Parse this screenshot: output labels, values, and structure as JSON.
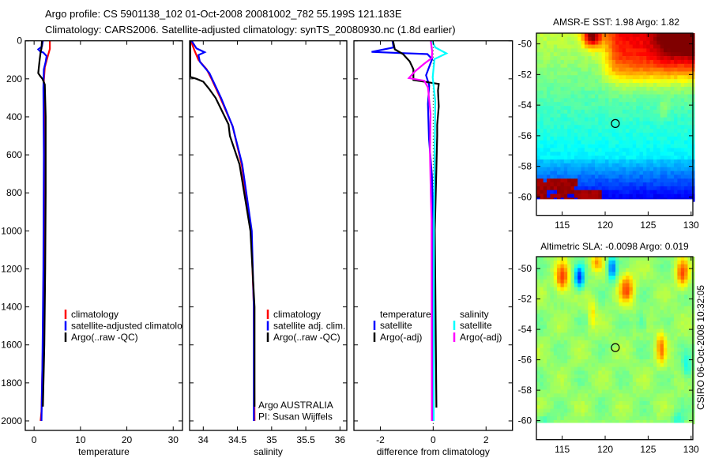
{
  "header": {
    "line1": "Argo profile: CS 5901138_102 01-Oct-2008 20081002_782 55.199S 121.183E",
    "line2": "Climatology: CARS2006. Satellite-adjusted climatology: synTS_20080930.nc (1.8d earlier)"
  },
  "footer_stamp": "CSIRO 06-Oct-2008 10:32:05",
  "chart_data": [
    {
      "type": "line",
      "xlabel": "temperature",
      "ylabel": "",
      "xlim": [
        -1.9,
        32.0
      ],
      "ylim": [
        0,
        2050
      ],
      "y_reversed": true,
      "xticks": [
        0,
        10,
        20,
        30
      ],
      "yticks": [
        0,
        200,
        400,
        600,
        800,
        1000,
        1200,
        1400,
        1600,
        1800,
        2000
      ],
      "legend": [
        "climatology",
        "satellite-adjusted climatology",
        "Argo(..raw -QC)"
      ],
      "series": [
        {
          "name": "climatology",
          "color": "#ff0000",
          "depth": [
            0,
            43,
            76,
            139,
            209,
            300,
            500,
            800,
            1200,
            1600,
            1950,
            2000
          ],
          "values": [
            3.4,
            3.4,
            3.0,
            2.3,
            2.1,
            2.2,
            2.3,
            2.25,
            2.1,
            1.9,
            1.6,
            1.4
          ]
        },
        {
          "name": "satellite-adjusted climatology",
          "color": "#0000ff",
          "depth": [
            0,
            30,
            45,
            55,
            62,
            80,
            110,
            150,
            250,
            600,
            1200,
            1700,
            2000
          ],
          "values": [
            1.9,
            1.7,
            0.9,
            1.3,
            2.0,
            2.7,
            2.5,
            2.1,
            2.0,
            2.1,
            2.0,
            1.8,
            1.6
          ]
        },
        {
          "name": "Argo(..raw -QC)",
          "color": "#000000",
          "depth": [
            0,
            40,
            60,
            100,
            170,
            185,
            200,
            230,
            400,
            800,
            1200,
            1600,
            1925
          ],
          "values": [
            1.7,
            1.6,
            1.4,
            1.2,
            0.9,
            1.3,
            1.8,
            2.3,
            2.5,
            2.5,
            2.4,
            2.2,
            1.9
          ]
        }
      ]
    },
    {
      "type": "line",
      "xlabel": "salinity",
      "xlim": [
        33.8,
        36.1
      ],
      "ylim": [
        0,
        2050
      ],
      "y_reversed": true,
      "xticks": [
        34,
        34.5,
        35,
        35.5,
        36
      ],
      "legend": [
        "climatology",
        "satellite adj. clim.",
        "Argo(..raw -QC)"
      ],
      "annotation": [
        "Argo AUSTRALIA",
        "PI: Susan Wijffels"
      ],
      "series": [
        {
          "name": "climatology",
          "color": "#ff0000",
          "depth": [
            0,
            50,
            100,
            150,
            200,
            300,
            450,
            650,
            1000,
            1400,
            2000
          ],
          "values": [
            33.82,
            33.87,
            33.93,
            34.05,
            34.12,
            34.25,
            34.43,
            34.56,
            34.7,
            34.74,
            34.75
          ]
        },
        {
          "name": "satellite adj. clim.",
          "color": "#0000ff",
          "depth": [
            0,
            40,
            60,
            75,
            110,
            170,
            300,
            450,
            650,
            1000,
            1400,
            2000
          ],
          "values": [
            33.83,
            33.9,
            34.02,
            33.93,
            33.95,
            34.09,
            34.26,
            34.43,
            34.57,
            34.71,
            34.74,
            34.74
          ]
        },
        {
          "name": "Argo(..raw -QC)",
          "color": "#000000",
          "depth": [
            0,
            190,
            200,
            215,
            250,
            300,
            440,
            500,
            650,
            1000,
            1400,
            1925
          ],
          "values": [
            33.81,
            33.81,
            33.9,
            34.0,
            34.08,
            34.18,
            34.37,
            34.39,
            34.53,
            34.69,
            34.75,
            34.75
          ]
        }
      ]
    },
    {
      "type": "line",
      "xlabel": "difference from climatology",
      "xlim": [
        -3,
        3
      ],
      "ylim": [
        0,
        2050
      ],
      "y_reversed": true,
      "xticks": [
        -2,
        0,
        2
      ],
      "legend_groups": [
        {
          "title": "temperature",
          "items": [
            "satellite",
            "Argo(-adj)"
          ]
        },
        {
          "title": "salinity",
          "items": [
            "satellite",
            "Argo(-adj)"
          ]
        }
      ],
      "series": [
        {
          "name": "temperature satellite",
          "color": "#0000ff",
          "depth": [
            0,
            35,
            58,
            70,
            96,
            181,
            234,
            333,
            513,
            707,
            970,
            2000
          ],
          "values": [
            -1.54,
            -1.5,
            -2.33,
            -0.22,
            -0.04,
            -0.27,
            -0.15,
            -0.2,
            -0.16,
            -0.05,
            0,
            0
          ]
        },
        {
          "name": "temperature Argo(-adj)",
          "color": "#000000",
          "depth": [
            0,
            45,
            70,
            108,
            150,
            206,
            217,
            227,
            262,
            345,
            442,
            498,
            664,
            997,
            1930
          ],
          "values": [
            -1.52,
            -1.45,
            -1.14,
            -0.89,
            -0.75,
            -0.75,
            -0.24,
            0.21,
            0.18,
            0.21,
            0.15,
            0.15,
            0.12,
            0.06,
            0.12
          ]
        },
        {
          "name": "salinity satellite",
          "color": "#00ffff",
          "depth": [
            0,
            35,
            66,
            96,
            192,
            317,
            525,
            939,
            2000
          ],
          "values": [
            -0.04,
            0.08,
            0.5,
            0.05,
            -0.02,
            0.08,
            0.06,
            0.03,
            0.02
          ]
        },
        {
          "name": "salinity Argo(-adj)",
          "color": "#ff00ff",
          "depth": [
            0,
            55,
            90,
            120,
            161,
            196,
            210,
            245,
            384,
            592,
            800,
            939,
            2000
          ],
          "values": [
            -0.09,
            -0.04,
            -0.05,
            -0.34,
            -0.69,
            -0.92,
            -0.34,
            -0.2,
            -0.1,
            -0.12,
            -0.09,
            -0.06,
            -0.05
          ]
        }
      ]
    },
    {
      "type": "heatmap",
      "title": "AMSR-E SST: 1.98 Argo: 1.82",
      "xlim": [
        112.0,
        130.2
      ],
      "ylim": [
        -61.2,
        -49.3
      ],
      "xticks": [
        115,
        120,
        125,
        130
      ],
      "yticks": [
        -50,
        -52,
        -54,
        -56,
        -58,
        -60
      ],
      "colormap": "jet",
      "argo_position": {
        "lon": 121.183,
        "lat": -55.199
      }
    },
    {
      "type": "heatmap",
      "title": "Altimetric SLA: -0.0098 Argo: 0.019",
      "xlim": [
        112.0,
        130.2
      ],
      "ylim": [
        -61.25,
        -49.22
      ],
      "xticks": [
        115,
        120,
        125,
        130
      ],
      "yticks": [
        -50,
        -52,
        -54,
        -56,
        -58,
        -60
      ],
      "colormap": "jet",
      "argo_position": {
        "lon": 121.183,
        "lat": -55.199
      }
    }
  ]
}
